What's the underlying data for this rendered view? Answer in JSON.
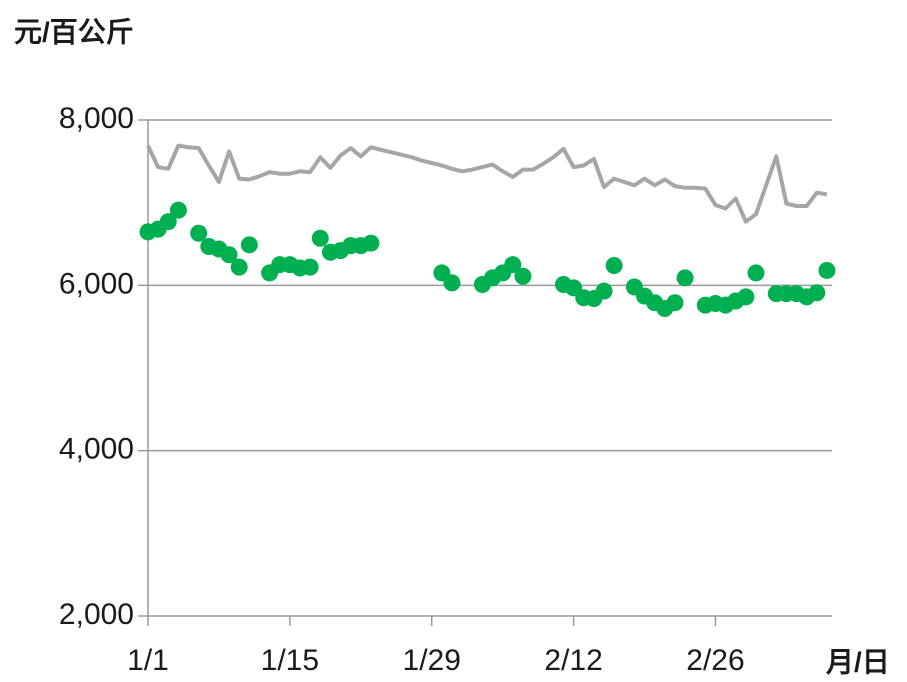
{
  "chart_data": {
    "type": "line",
    "y_label": "元/百公斤",
    "x_label": "月/日",
    "x": [
      1,
      2,
      3,
      4,
      5,
      6,
      7,
      8,
      9,
      10,
      11,
      12,
      13,
      14,
      15,
      16,
      17,
      18,
      19,
      20,
      21,
      22,
      23,
      24,
      25,
      26,
      27,
      28,
      29,
      30,
      31,
      32,
      33,
      34,
      35,
      36,
      37,
      38,
      39,
      40,
      41,
      42,
      43,
      44,
      45,
      46,
      47,
      48,
      49,
      50,
      51,
      52,
      53,
      54,
      55,
      56,
      57,
      58,
      59,
      60,
      61,
      62,
      63,
      64,
      65,
      66,
      67,
      68
    ],
    "series": [
      {
        "color": "#a6a6a6",
        "mode": "lines",
        "values": [
          7690,
          7430,
          7410,
          7690,
          7670,
          7660,
          7450,
          7250,
          7620,
          7290,
          7280,
          7320,
          7370,
          7350,
          7350,
          7380,
          7370,
          7550,
          7420,
          7570,
          7660,
          7560,
          7670,
          7640,
          7610,
          7580,
          7550,
          7510,
          7480,
          7450,
          7410,
          7380,
          7400,
          7430,
          7460,
          7380,
          7310,
          7400,
          7400,
          7470,
          7550,
          7650,
          7430,
          7450,
          7530,
          7190,
          7290,
          7250,
          7210,
          7290,
          7210,
          7280,
          7200,
          7180,
          7180,
          7170,
          6970,
          6930,
          7050,
          6770,
          6860,
          7210,
          7560,
          6990,
          6960,
          6960,
          7120,
          7100
        ]
      },
      {
        "color": "#00b050",
        "mode": "markers",
        "values": [
          6647,
          6680,
          6770,
          6910,
          null,
          6630,
          6470,
          6440,
          6370,
          6220,
          6490,
          null,
          6150,
          6250,
          6250,
          6210,
          6220,
          6570,
          6400,
          6420,
          6480,
          6480,
          6510,
          null,
          null,
          null,
          null,
          null,
          null,
          6150,
          6030,
          null,
          null,
          6010,
          6090,
          6150,
          6250,
          6110,
          null,
          null,
          null,
          6010,
          5970,
          5850,
          5840,
          5930,
          6240,
          null,
          5980,
          5870,
          5790,
          5720,
          5790,
          6090,
          null,
          5760,
          5780,
          5760,
          5810,
          5860,
          6150,
          null,
          5900,
          5900,
          5900,
          5860,
          5910,
          6180
        ]
      }
    ],
    "xlim": [
      1,
      68.5
    ],
    "xticks": [
      {
        "value": 1,
        "label": "1/1"
      },
      {
        "value": 15,
        "label": "1/15"
      },
      {
        "value": 29,
        "label": "1/29"
      },
      {
        "value": 43,
        "label": "2/12"
      },
      {
        "value": 57,
        "label": "2/26"
      }
    ],
    "ylim": [
      2000,
      8000
    ],
    "yticks": [
      {
        "value": 2000,
        "label": "2,000"
      },
      {
        "value": 4000,
        "label": "4,000"
      },
      {
        "value": 6000,
        "label": "6,000"
      },
      {
        "value": 8000,
        "label": "8,000"
      }
    ],
    "grid": true
  }
}
